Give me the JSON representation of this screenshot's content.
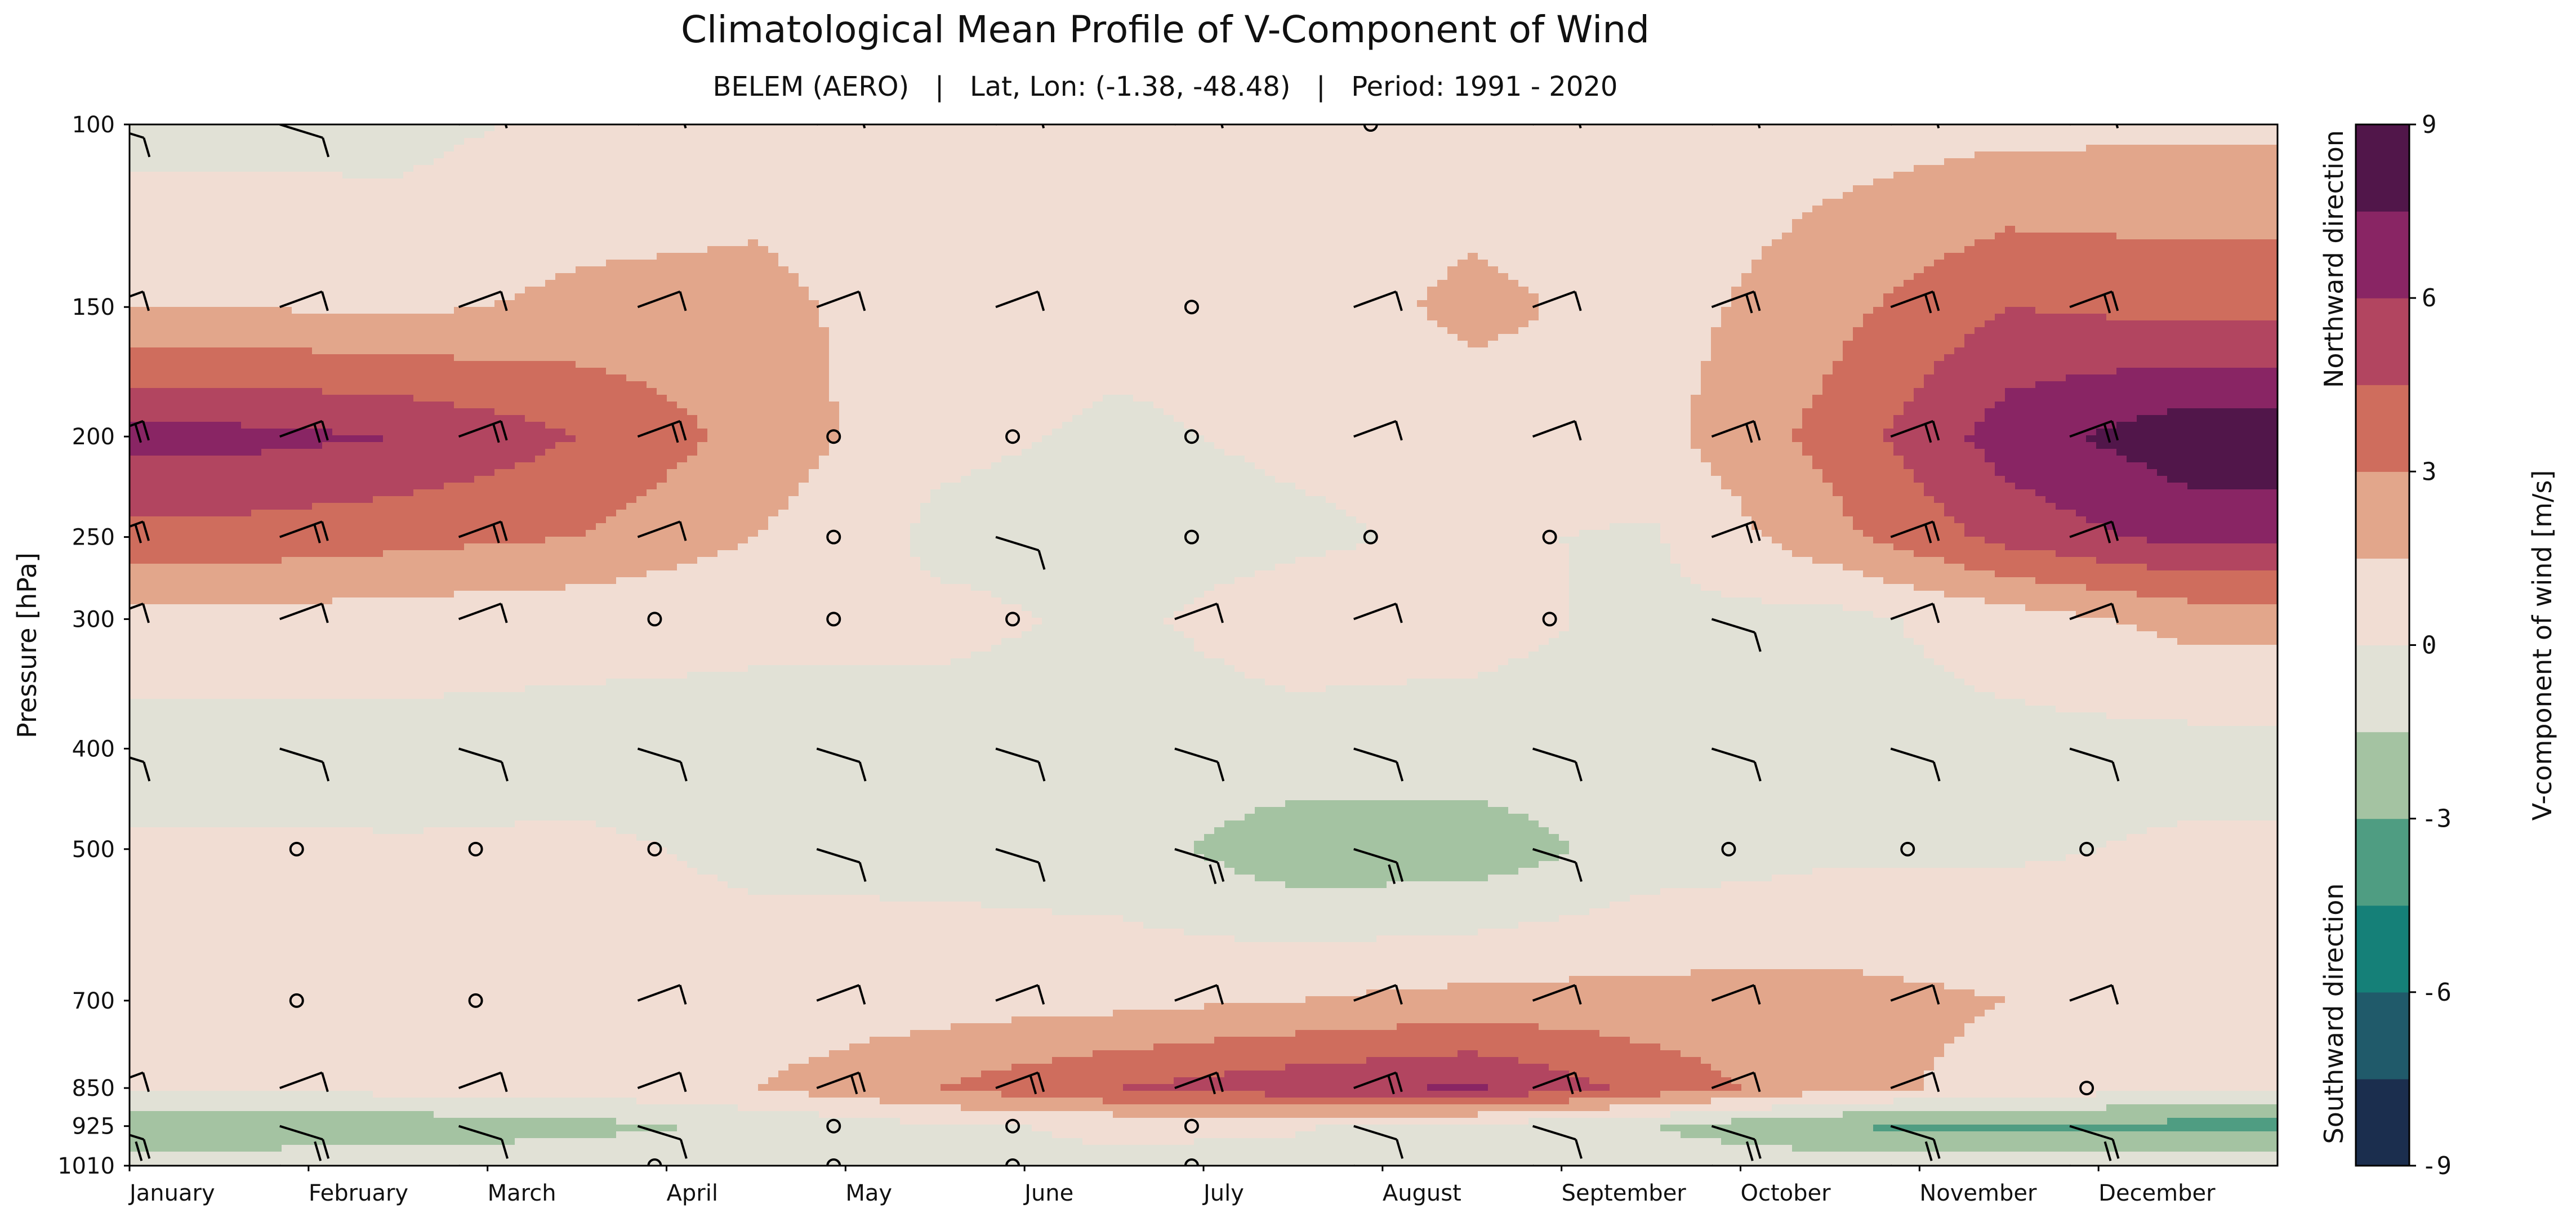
{
  "chart_data": {
    "type": "heatmap",
    "title": "Climatological Mean Profile of V-Component of Wind",
    "subtitle": "BELEM (AERO)   |   Lat, Lon: (-1.38, -48.48)   |   Period: 1991 - 2020",
    "ylabel": "Pressure [hPa]",
    "y_scale": "log",
    "y_reversed": true,
    "ylim": [
      1010,
      100
    ],
    "x_ticks": [
      "January",
      "February",
      "March",
      "April",
      "May",
      "June",
      "July",
      "August",
      "September",
      "October",
      "November",
      "December"
    ],
    "y_ticks": [
      100,
      150,
      200,
      250,
      300,
      400,
      500,
      700,
      850,
      925,
      1010
    ],
    "pressure_levels": [
      100,
      150,
      200,
      250,
      300,
      400,
      500,
      700,
      850,
      925,
      1010
    ],
    "v_wind_ms": [
      [
        -0.5,
        -0.5,
        0.4,
        0.6,
        0.4,
        0.5,
        0.4,
        0.3,
        0.4,
        0.8,
        1.0,
        1.2
      ],
      [
        1.5,
        1.2,
        1.8,
        2.0,
        0.6,
        0.4,
        0.3,
        2.0,
        0.8,
        2.5,
        4.5,
        4.0
      ],
      [
        6.5,
        6.0,
        4.5,
        2.5,
        0.3,
        -0.2,
        0.2,
        0.4,
        1.0,
        3.5,
        6.8,
        8.5
      ],
      [
        4.0,
        3.5,
        3.0,
        1.5,
        -0.3,
        -0.5,
        -0.2,
        0.2,
        -0.2,
        2.5,
        5.0,
        6.5
      ],
      [
        1.0,
        0.8,
        0.5,
        0.3,
        0.3,
        -0.2,
        0.5,
        0.4,
        -0.3,
        -0.5,
        0.8,
        2.0
      ],
      [
        -0.6,
        -0.5,
        -0.5,
        -0.5,
        -0.5,
        -0.5,
        -0.4,
        -0.5,
        -0.5,
        -0.5,
        -0.5,
        -0.5
      ],
      [
        0.2,
        0.1,
        0.2,
        -0.2,
        -0.4,
        -0.8,
        -2.5,
        -2.5,
        -0.8,
        -0.3,
        -0.2,
        0.2
      ],
      [
        0.3,
        0.3,
        0.3,
        0.5,
        0.8,
        1.0,
        1.5,
        2.0,
        2.0,
        2.0,
        1.5,
        0.8
      ],
      [
        0.4,
        0.5,
        0.6,
        1.5,
        3.0,
        4.5,
        5.5,
        6.2,
        4.0,
        2.0,
        1.0,
        0.3
      ],
      [
        -2.8,
        -2.5,
        -2.0,
        -1.2,
        -0.2,
        0.2,
        0.1,
        -0.5,
        -1.5,
        -3.0,
        -3.5,
        -3.5
      ],
      [
        -0.6,
        -0.5,
        -0.4,
        -0.3,
        -0.2,
        -0.2,
        -0.3,
        -0.4,
        -0.5,
        -0.6,
        -0.6,
        -0.6
      ]
    ],
    "colorbar": {
      "label": "V-component of wind [m/s]",
      "ticks": [
        "9",
        "6",
        "3",
        "0",
        "-3",
        "-6",
        "-9"
      ],
      "levels": [
        -9,
        -7.5,
        -6,
        -4.5,
        -3,
        -1.5,
        0,
        1.5,
        3,
        4.5,
        6,
        7.5,
        9
      ],
      "colors": [
        "#1b2e4e",
        "#205a6a",
        "#158078",
        "#4f9d82",
        "#a4c3a2",
        "#e1e1d6",
        "#f1ddd3",
        "#e2a68b",
        "#cf6d5d",
        "#b24560",
        "#892564",
        "#51164a"
      ],
      "top_annotation": "Northward direction",
      "bottom_annotation": "Southward direction"
    },
    "grid": false
  }
}
